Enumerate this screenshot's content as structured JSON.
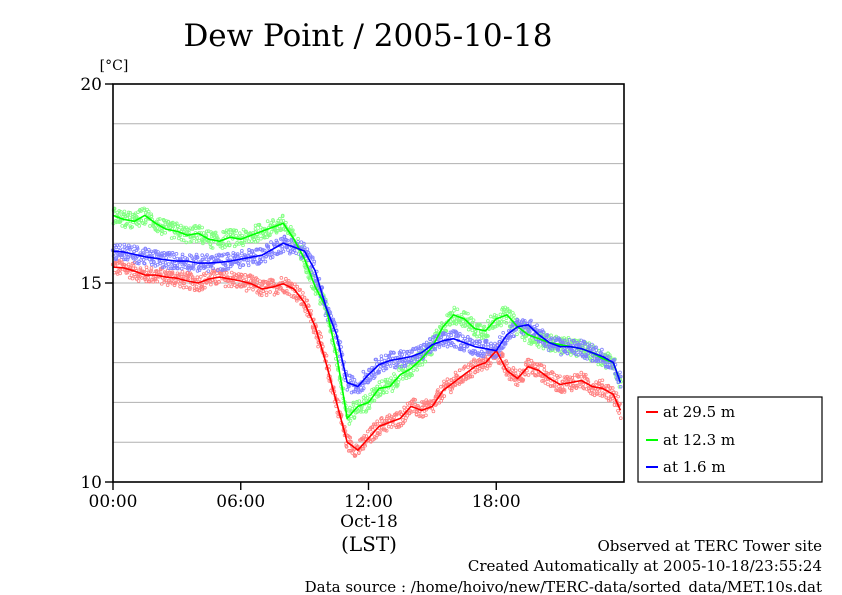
{
  "chart_data": {
    "type": "line",
    "title": "Dew Point / 2005-10-18",
    "ylabel": "[°C]",
    "xlabel": "(LST)",
    "xlim": [
      "00:00",
      "24:00"
    ],
    "ylim": [
      10,
      20
    ],
    "y_ticks": [
      10,
      15,
      20
    ],
    "y_grid": [
      11,
      12,
      13,
      14,
      15,
      16,
      17,
      18,
      19
    ],
    "x_tick_labels": [
      "00:00",
      "06:00",
      "12:00",
      "18:00"
    ],
    "x_date_label": "Oct-18",
    "grid": true,
    "legend_position": "bottom-right outside plot",
    "x": [
      "00:00",
      "00:30",
      "01:00",
      "01:30",
      "02:00",
      "02:30",
      "03:00",
      "03:30",
      "04:00",
      "04:30",
      "05:00",
      "05:30",
      "06:00",
      "06:30",
      "07:00",
      "07:30",
      "08:00",
      "08:30",
      "09:00",
      "09:30",
      "10:00",
      "10:30",
      "11:00",
      "11:30",
      "12:00",
      "12:30",
      "13:00",
      "13:30",
      "14:00",
      "14:30",
      "15:00",
      "15:30",
      "16:00",
      "16:30",
      "17:00",
      "17:30",
      "18:00",
      "18:30",
      "19:00",
      "19:30",
      "20:00",
      "20:30",
      "21:00",
      "21:30",
      "22:00",
      "22:30",
      "23:00",
      "23:30",
      "23:50"
    ],
    "series": [
      {
        "name": "at 29.5 m",
        "color": "#ff0000",
        "scatter_color": "#ff8080",
        "values": [
          15.4,
          15.38,
          15.3,
          15.2,
          15.2,
          15.15,
          15.12,
          15.05,
          15.0,
          15.1,
          15.15,
          15.1,
          15.05,
          14.98,
          14.85,
          14.9,
          14.98,
          14.85,
          14.5,
          13.9,
          13.0,
          12.0,
          11.0,
          10.8,
          11.1,
          11.4,
          11.5,
          11.6,
          11.9,
          11.8,
          11.9,
          12.3,
          12.5,
          12.7,
          12.9,
          13.0,
          13.3,
          12.8,
          12.6,
          12.9,
          12.8,
          12.6,
          12.45,
          12.5,
          12.55,
          12.4,
          12.35,
          12.2,
          11.8
        ]
      },
      {
        "name": "at 12.3 m",
        "color": "#00ff00",
        "scatter_color": "#80ff80",
        "values": [
          16.7,
          16.6,
          16.55,
          16.7,
          16.5,
          16.35,
          16.3,
          16.2,
          16.25,
          16.1,
          16.05,
          16.15,
          16.1,
          16.2,
          16.3,
          16.4,
          16.5,
          16.1,
          15.6,
          14.9,
          14.4,
          13.2,
          11.6,
          11.9,
          12.0,
          12.35,
          12.4,
          12.7,
          12.85,
          13.1,
          13.4,
          13.9,
          14.2,
          14.1,
          13.85,
          13.8,
          14.1,
          14.2,
          13.9,
          13.7,
          13.6,
          13.5,
          13.45,
          13.4,
          13.35,
          13.25,
          13.1,
          13.0,
          12.5
        ]
      },
      {
        "name": "at 1.6 m",
        "color": "#0000ff",
        "scatter_color": "#8080ff",
        "values": [
          15.8,
          15.78,
          15.72,
          15.66,
          15.62,
          15.58,
          15.55,
          15.55,
          15.5,
          15.5,
          15.52,
          15.55,
          15.6,
          15.65,
          15.7,
          15.85,
          16.0,
          15.9,
          15.8,
          15.3,
          14.4,
          13.7,
          12.5,
          12.4,
          12.7,
          12.95,
          13.05,
          13.1,
          13.15,
          13.25,
          13.45,
          13.55,
          13.6,
          13.5,
          13.4,
          13.35,
          13.3,
          13.7,
          13.9,
          13.95,
          13.7,
          13.5,
          13.4,
          13.4,
          13.35,
          13.25,
          13.15,
          13.0,
          12.5
        ]
      }
    ]
  },
  "footer": {
    "line1": "Observed at TERC Tower site",
    "line2": "Created Automatically at 2005-10-18/23:55:24",
    "line3": "Data source : /home/hoivo/new/TERC-data/sorted_data/MET.10s.dat"
  }
}
